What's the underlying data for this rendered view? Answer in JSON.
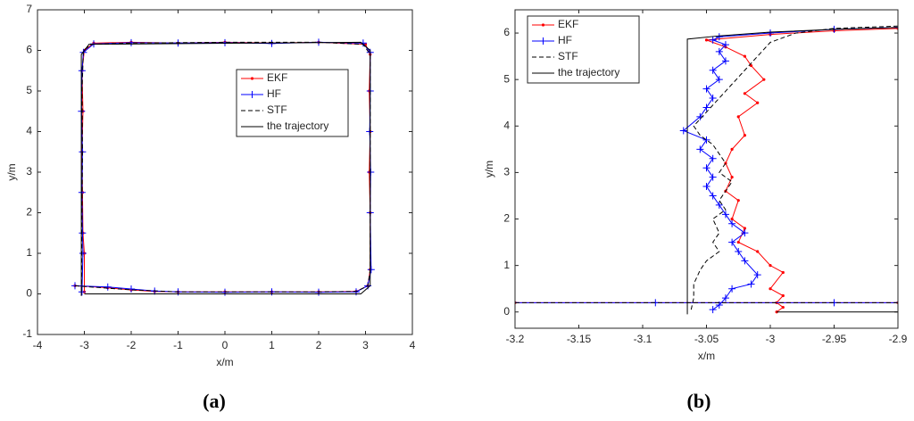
{
  "chart_data": [
    {
      "type": "line",
      "panel_label": "(a)",
      "xlabel": "x/m",
      "ylabel": "y/m",
      "xlim": [
        -4,
        4
      ],
      "ylim": [
        -1,
        7
      ],
      "xticks": [
        -4,
        -3,
        -2,
        -1,
        0,
        1,
        2,
        3,
        4
      ],
      "yticks": [
        -1,
        0,
        1,
        2,
        3,
        4,
        5,
        6,
        7
      ],
      "grid": false,
      "legend": "right",
      "series": [
        {
          "name": "EKF",
          "color": "#ff0000",
          "marker": "dot",
          "dash": false,
          "x": [
            -3.2,
            -2.5,
            -2,
            -1.5,
            -1,
            0,
            1,
            2,
            2.8,
            3.05,
            3.1,
            3.1,
            3.08,
            3.1,
            3.08,
            3.1,
            3,
            2,
            1,
            0,
            -1,
            -2,
            -2.8,
            -3,
            -3.05,
            -3.03,
            -3.05,
            -3.04,
            -3.03,
            -3,
            -3
          ],
          "values": [
            0.2,
            0.15,
            0.1,
            0.06,
            0.05,
            0.05,
            0.05,
            0.05,
            0.06,
            0.2,
            0.6,
            2,
            3,
            4,
            5,
            5.9,
            6.15,
            6.2,
            6.18,
            6.2,
            6.18,
            6.2,
            6.18,
            6,
            5.5,
            4.5,
            3.5,
            2.5,
            1.5,
            1,
            0.05
          ]
        },
        {
          "name": "HF",
          "color": "#0000ff",
          "marker": "plus",
          "dash": false,
          "x": [
            -3.2,
            -2.5,
            -2,
            -1.5,
            -1,
            0,
            1,
            2,
            2.8,
            3.05,
            3.12,
            3.1,
            3.11,
            3.09,
            3.1,
            3.1,
            2.95,
            2,
            1,
            0,
            -1,
            -2,
            -2.8,
            -3.02,
            -3.05,
            -3.06,
            -3.04,
            -3.05,
            -3.04,
            -3.03,
            -3.05
          ],
          "values": [
            0.2,
            0.17,
            0.12,
            0.07,
            0.05,
            0.04,
            0.05,
            0.04,
            0.05,
            0.2,
            0.6,
            2,
            3,
            4,
            5,
            5.95,
            6.18,
            6.2,
            6.17,
            6.19,
            6.18,
            6.19,
            6.16,
            5.95,
            5.5,
            4.5,
            3.5,
            2.5,
            1.5,
            1,
            0.05
          ]
        },
        {
          "name": "STF",
          "color": "#000000",
          "marker": "none",
          "dash": true,
          "x": [
            -3.2,
            -2.5,
            -2,
            -1,
            0,
            1,
            2,
            2.8,
            3.05,
            3.1,
            3.1,
            3.1,
            2.95,
            2,
            0,
            -2,
            -2.85,
            -3.02,
            -3.05,
            -3.04,
            -3.05,
            -3.06
          ],
          "values": [
            0.2,
            0.14,
            0.1,
            0.05,
            0.05,
            0.05,
            0.05,
            0.06,
            0.2,
            0.6,
            3,
            5.9,
            6.15,
            6.2,
            6.2,
            6.18,
            6.15,
            6,
            5,
            3.5,
            2,
            0.05
          ]
        },
        {
          "name": "the trajectory",
          "color": "#000000",
          "marker": "none",
          "dash": false,
          "x": [
            -3,
            2.9,
            3.1,
            3.1,
            2.9,
            -2.9,
            -3.065,
            -3.065
          ],
          "values": [
            0,
            0,
            0.2,
            6,
            6.2,
            6.15,
            5.9,
            -0.05
          ]
        }
      ]
    },
    {
      "type": "line",
      "panel_label": "(b)",
      "xlabel": "x/m",
      "ylabel": "y/m",
      "xlim": [
        -3.2,
        -2.9
      ],
      "ylim": [
        -0.35,
        6.5
      ],
      "xticks": [
        -3.2,
        -3.15,
        -3.1,
        -3.05,
        -3,
        -2.95,
        -2.9
      ],
      "yticks": [
        0,
        1,
        2,
        3,
        4,
        5,
        6
      ],
      "grid": false,
      "legend": "upper left",
      "series": [
        {
          "name": "EKF",
          "color": "#ff0000",
          "marker": "dot",
          "dash": false,
          "x": [
            -3.2,
            -2.9,
            null,
            -2.9,
            -2.95,
            -3,
            -3.05,
            -3.035,
            -3.02,
            -3.015,
            -3.005,
            -3.02,
            -3.01,
            -3.025,
            -3.02,
            -3.03,
            -3.035,
            -3.03,
            -3.035,
            -3.025,
            -3.03,
            -3.02,
            -3.025,
            -3.01,
            -3,
            -2.99,
            -3,
            -2.99,
            -2.995,
            -2.99,
            -2.995
          ],
          "values": [
            0.2,
            0.2,
            null,
            6.1,
            6.05,
            5.97,
            5.85,
            5.7,
            5.5,
            5.3,
            5,
            4.7,
            4.5,
            4.2,
            3.8,
            3.5,
            3.2,
            2.9,
            2.6,
            2.4,
            2,
            1.8,
            1.5,
            1.3,
            1,
            0.85,
            0.5,
            0.35,
            0.2,
            0.1,
            0
          ]
        },
        {
          "name": "HF",
          "color": "#0000ff",
          "marker": "plus",
          "dash": false,
          "x": [
            -3.2,
            -3.09,
            -2.95,
            -2.9,
            null,
            -2.9,
            -2.95,
            -3,
            -3.04,
            -3.045,
            -3.035,
            -3.04,
            -3.035,
            -3.045,
            -3.04,
            -3.05,
            -3.045,
            -3.05,
            -3.055,
            -3.068,
            -3.05,
            -3.055,
            -3.045,
            -3.05,
            -3.045,
            -3.05,
            -3.045,
            -3.04,
            -3.035,
            -3.03,
            -3.02,
            -3.03,
            -3.025,
            -3.02,
            -3.01,
            -3.015,
            -3.03,
            -3.035,
            -3.04,
            -3.045
          ],
          "values": [
            0.2,
            0.2,
            0.2,
            0.2,
            null,
            6.12,
            6.08,
            6,
            5.92,
            5.85,
            5.75,
            5.6,
            5.4,
            5.2,
            5,
            4.8,
            4.6,
            4.4,
            4.2,
            3.9,
            3.7,
            3.5,
            3.3,
            3.1,
            2.9,
            2.7,
            2.5,
            2.3,
            2.1,
            1.9,
            1.7,
            1.5,
            1.3,
            1.1,
            0.8,
            0.6,
            0.5,
            0.3,
            0.15,
            0.05
          ]
        },
        {
          "name": "STF",
          "color": "#000000",
          "marker": "none",
          "dash": true,
          "x": [
            -3.2,
            -2.9,
            null,
            -2.9,
            -2.95,
            -2.98,
            -3,
            -3.01,
            -3.02,
            -3.03,
            -3.04,
            -3.05,
            -3.06,
            -3.055,
            -3.045,
            -3.04,
            -3.035,
            -3.04,
            -3.03,
            -3.035,
            -3.04,
            -3.035,
            -3.045,
            -3.04,
            -3.045,
            -3.04,
            -3.05,
            -3.055,
            -3.06,
            -3.06,
            -3.062
          ],
          "values": [
            0.2,
            0.2,
            null,
            6.15,
            6.1,
            6,
            5.8,
            5.5,
            5.2,
            4.9,
            4.6,
            4.3,
            4,
            3.8,
            3.6,
            3.4,
            3.2,
            3,
            2.8,
            2.6,
            2.4,
            2.2,
            2,
            1.7,
            1.5,
            1.3,
            1.1,
            0.9,
            0.6,
            0.3,
            0.05
          ]
        },
        {
          "name": "the trajectory",
          "color": "#000000",
          "marker": "none",
          "dash": false,
          "x": [
            -2.9,
            -2.995,
            null,
            -3.065,
            -3.065,
            -3.04,
            -3,
            -2.95,
            -2.9
          ],
          "values": [
            0,
            0,
            null,
            -0.05,
            5.87,
            5.94,
            6.02,
            6.08,
            6.12
          ]
        }
      ]
    }
  ]
}
